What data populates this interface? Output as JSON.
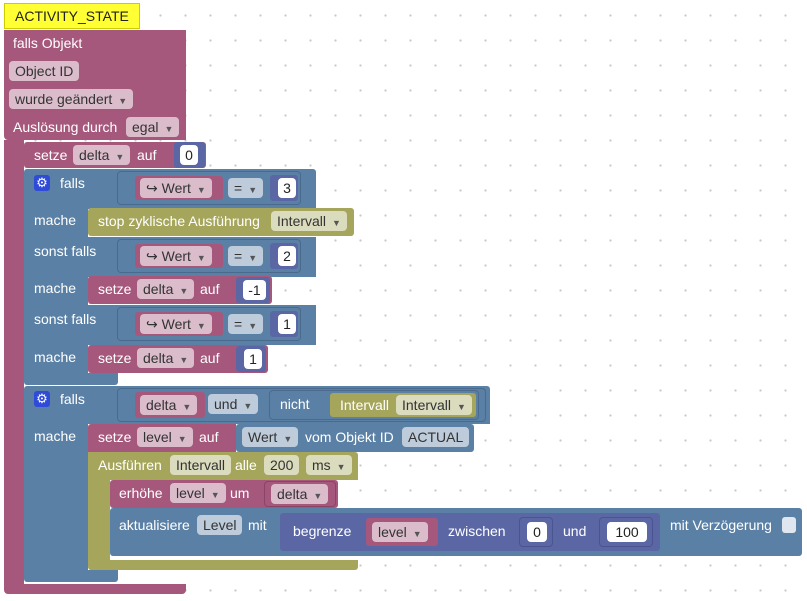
{
  "trigger": {
    "hat_label": "ACTIVITY_STATE",
    "title": "falls Objekt",
    "object_id": "Object ID",
    "change": "wurde geändert",
    "trigger_by": "Auslösung durch",
    "trigger_value": "egal"
  },
  "set1": {
    "label": "setze",
    "var": "delta",
    "auf": "auf",
    "value": "0"
  },
  "if1": {
    "falls": "falls",
    "mache": "mache",
    "sonst_falls": "sonst falls",
    "value_block": "↪ Wert",
    "op": "=",
    "cond1_val": "3",
    "stop_label": "stop zyklische Ausführung",
    "stop_var": "Intervall",
    "cond2_val": "2",
    "set2": {
      "label": "setze",
      "var": "delta",
      "auf": "auf",
      "value": "-1"
    },
    "cond3_val": "1",
    "set3": {
      "label": "setze",
      "var": "delta",
      "auf": "auf",
      "value": "1"
    }
  },
  "if2": {
    "falls": "falls",
    "mache": "mache",
    "left_var": "delta",
    "logic_op": "und",
    "nicht": "nicht",
    "intervall_label": "Intervall",
    "intervall_var": "Intervall",
    "setlevel": {
      "label": "setze",
      "var": "level",
      "auf": "auf",
      "attr": "Wert",
      "from": "vom Objekt ID",
      "id": "ACTUAL"
    },
    "exec": {
      "label": "Ausführen",
      "var": "Intervall",
      "every": "alle",
      "value": "200",
      "unit": "ms"
    },
    "inc": {
      "label": "erhöhe",
      "var": "level",
      "by": "um",
      "amount": "delta"
    },
    "update": {
      "label": "aktualisiere",
      "obj": "Level",
      "with": "mit",
      "clamp": "begrenze",
      "clamp_var": "level",
      "between": "zwischen",
      "low": "0",
      "and": "und",
      "high": "100",
      "delay": "mit Verzögerung"
    }
  }
}
